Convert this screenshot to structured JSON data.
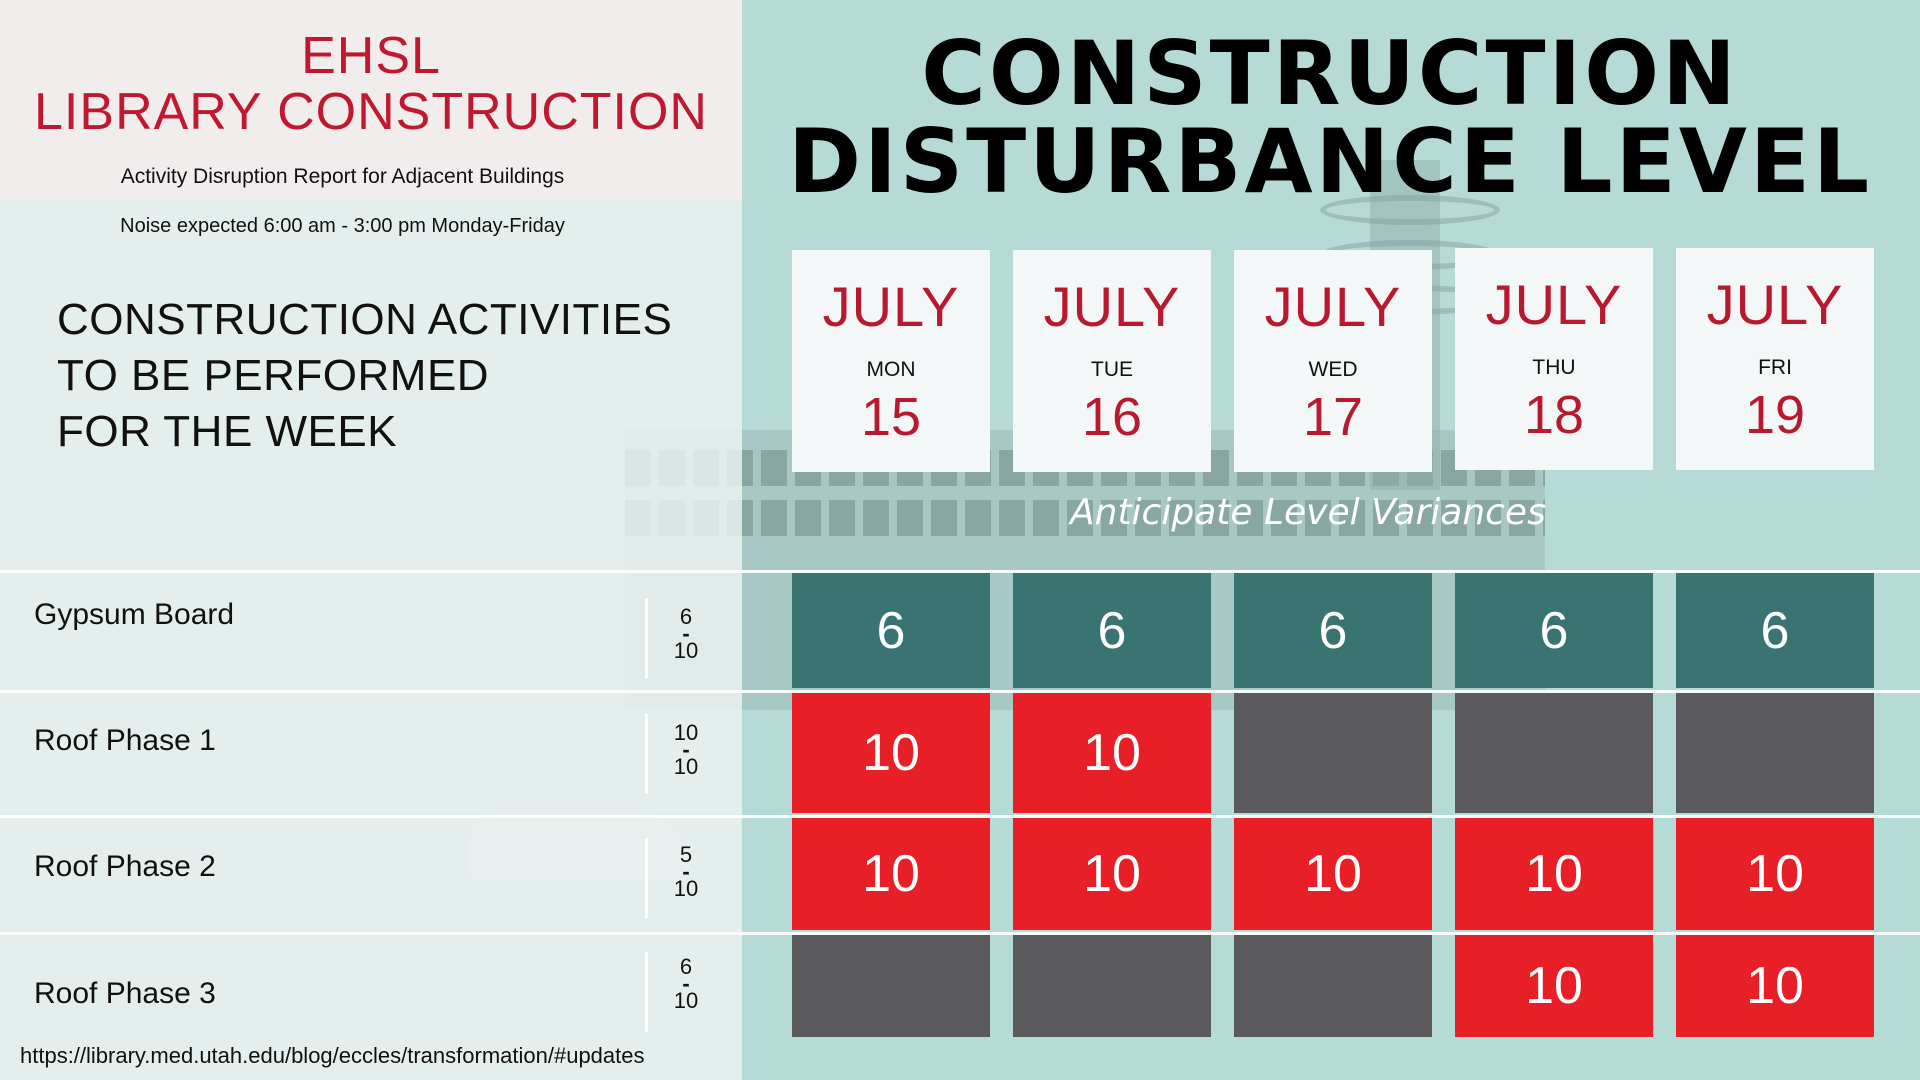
{
  "header": {
    "org_line": "EHSL",
    "project_line": "LIBRARY CONSTRUCTION",
    "subtitle": "Activity Disruption Report for Adjacent Buildings",
    "noise_note": "Noise expected 6:00 am - 3:00 pm Monday-Friday"
  },
  "activities_heading": {
    "line1": "CONSTRUCTION ACTIVITIES",
    "line2": "TO BE PERFORMED",
    "line3": "FOR THE WEEK"
  },
  "main_title": {
    "line1": "CONSTRUCTION",
    "line2": "DISTURBANCE LEVEL"
  },
  "days": [
    {
      "month": "JULY",
      "weekday": "MON",
      "date": "15"
    },
    {
      "month": "JULY",
      "weekday": "TUE",
      "date": "16"
    },
    {
      "month": "JULY",
      "weekday": "WED",
      "date": "17"
    },
    {
      "month": "JULY",
      "weekday": "THU",
      "date": "18"
    },
    {
      "month": "JULY",
      "weekday": "FRI",
      "date": "19"
    }
  ],
  "variance_note": "Anticipate Level Variances",
  "activities": [
    {
      "name": "Gypsum Board",
      "range_top": "6",
      "range_dash": "-",
      "range_bottom": "10",
      "levels": [
        {
          "value": "6",
          "status": "teal"
        },
        {
          "value": "6",
          "status": "teal"
        },
        {
          "value": "6",
          "status": "teal"
        },
        {
          "value": "6",
          "status": "teal"
        },
        {
          "value": "6",
          "status": "teal"
        }
      ]
    },
    {
      "name": "Roof Phase 1",
      "range_top": "10",
      "range_dash": "-",
      "range_bottom": "10",
      "levels": [
        {
          "value": "10",
          "status": "red"
        },
        {
          "value": "10",
          "status": "red"
        },
        {
          "value": "",
          "status": "gray"
        },
        {
          "value": "",
          "status": "gray"
        },
        {
          "value": "",
          "status": "gray"
        }
      ]
    },
    {
      "name": "Roof Phase 2",
      "range_top": "5",
      "range_dash": "-",
      "range_bottom": "10",
      "levels": [
        {
          "value": "10",
          "status": "red"
        },
        {
          "value": "10",
          "status": "red"
        },
        {
          "value": "10",
          "status": "red"
        },
        {
          "value": "10",
          "status": "red"
        },
        {
          "value": "10",
          "status": "red"
        }
      ]
    },
    {
      "name": "Roof Phase 3",
      "range_top": "6",
      "range_dash": "-",
      "range_bottom": "10",
      "levels": [
        {
          "value": "",
          "status": "gray"
        },
        {
          "value": "",
          "status": "gray"
        },
        {
          "value": "",
          "status": "gray"
        },
        {
          "value": "10",
          "status": "red"
        },
        {
          "value": "10",
          "status": "red"
        }
      ]
    }
  ],
  "colors": {
    "brand_red": "#c0182f",
    "level_high": "#e81f27",
    "level_moderate": "#3a7472",
    "level_none": "#5a5a5c",
    "background_teal": "#b6dbd7"
  },
  "footer": {
    "url": "https://library.med.utah.edu/blog/eccles/transformation/#updates"
  }
}
